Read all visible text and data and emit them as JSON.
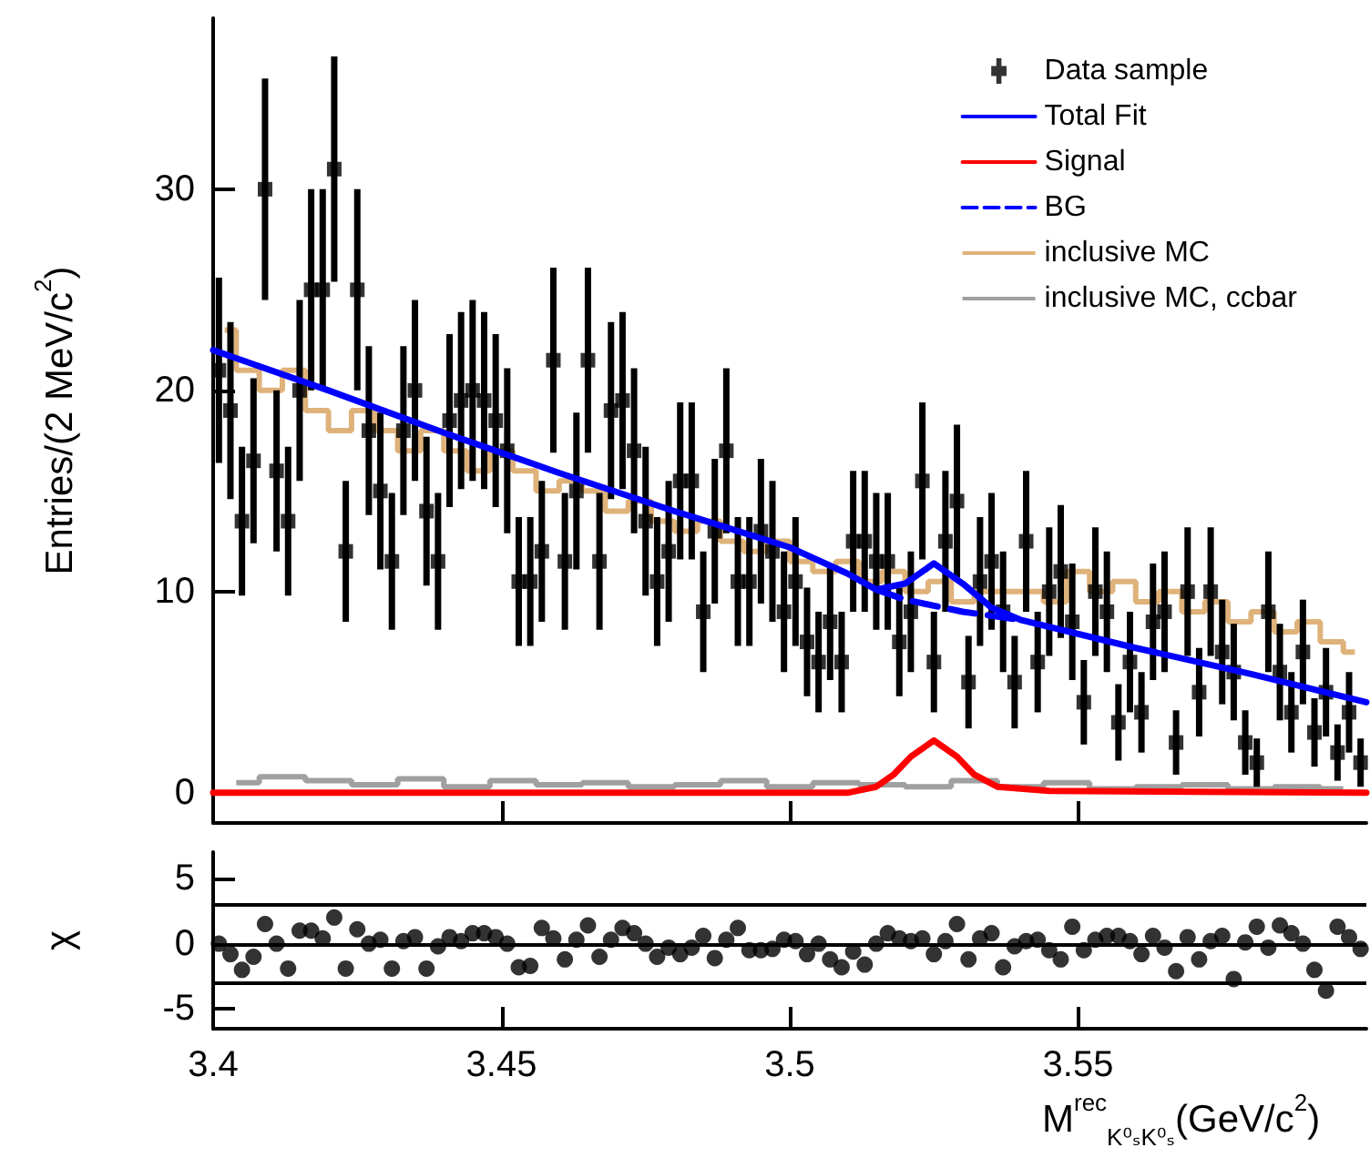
{
  "chart_data": [
    {
      "type": "scatter",
      "ylabel": "Entries/(2 MeV/c$^{2}$)",
      "xlim": [
        3.4,
        3.6
      ],
      "xticks": [
        3.4,
        3.45,
        3.5,
        3.55
      ],
      "ylim": [
        -1.5,
        38.5
      ],
      "yticks": [
        0,
        10,
        20,
        30
      ],
      "tick_labels": "y",
      "legend": "top right",
      "x": [
        3.401,
        3.403,
        3.405,
        3.407,
        3.409,
        3.411,
        3.413,
        3.415,
        3.417,
        3.419,
        3.421,
        3.423,
        3.425,
        3.427,
        3.429,
        3.431,
        3.433,
        3.435,
        3.437,
        3.439,
        3.441,
        3.443,
        3.445,
        3.447,
        3.449,
        3.451,
        3.453,
        3.455,
        3.457,
        3.459,
        3.461,
        3.463,
        3.465,
        3.467,
        3.469,
        3.471,
        3.473,
        3.475,
        3.477,
        3.479,
        3.481,
        3.483,
        3.485,
        3.487,
        3.489,
        3.491,
        3.493,
        3.495,
        3.497,
        3.499,
        3.501,
        3.503,
        3.505,
        3.507,
        3.509,
        3.511,
        3.513,
        3.515,
        3.517,
        3.519,
        3.521,
        3.523,
        3.525,
        3.527,
        3.529,
        3.531,
        3.533,
        3.535,
        3.537,
        3.539,
        3.541,
        3.543,
        3.545,
        3.547,
        3.549,
        3.551,
        3.553,
        3.555,
        3.557,
        3.559,
        3.561,
        3.563,
        3.565,
        3.567,
        3.569,
        3.571,
        3.573,
        3.575,
        3.577,
        3.579,
        3.581,
        3.583,
        3.585,
        3.587,
        3.589,
        3.591,
        3.593,
        3.595,
        3.597,
        3.599
      ],
      "series": [
        {
          "name": "Data sample",
          "type": "scatter",
          "marker": "square",
          "color": "#000000",
          "values": [
            21,
            19,
            13.5,
            16.5,
            30,
            16,
            13.5,
            20,
            25,
            25,
            31,
            12,
            25,
            18,
            15,
            11.5,
            18,
            20,
            14,
            11.5,
            18.5,
            19.5,
            20,
            19.5,
            18.5,
            17,
            10.5,
            10.5,
            12,
            21.5,
            11.5,
            15,
            21.5,
            11.5,
            19,
            19.5,
            17,
            13.5,
            10.5,
            12,
            15.5,
            15.5,
            9,
            13,
            17,
            10.5,
            10.5,
            13,
            12,
            9,
            10.5,
            7.5,
            6.5,
            8.5,
            6.5,
            12.5,
            12.5,
            11.5,
            11.5,
            7.5,
            9,
            15.5,
            6.5,
            12.5,
            14.5,
            5.5,
            10.5,
            11.5,
            9,
            5.5,
            12.5,
            6.5,
            10,
            11,
            8.5,
            4.5,
            10,
            9,
            3.5,
            6.5,
            4,
            8.5,
            9,
            2.5,
            10,
            5,
            10,
            7,
            6,
            2.5,
            1.5,
            9,
            6,
            4,
            7,
            3,
            5,
            2,
            4,
            1.5
          ],
          "errors": [
            4.6,
            4.4,
            3.7,
            4.1,
            5.5,
            4,
            3.7,
            4.5,
            5,
            5,
            5.6,
            3.5,
            5,
            4.2,
            3.9,
            3.4,
            4.2,
            4.5,
            3.7,
            3.4,
            4.3,
            4.4,
            4.5,
            4.4,
            4.3,
            4.1,
            3.2,
            3.2,
            3.5,
            4.6,
            3.4,
            3.9,
            4.6,
            3.4,
            4.4,
            4.4,
            4.1,
            3.7,
            3.2,
            3.5,
            3.9,
            3.9,
            3,
            3.6,
            4.1,
            3.2,
            3.2,
            3.6,
            3.5,
            3,
            3.2,
            2.7,
            2.5,
            2.9,
            2.5,
            3.5,
            3.5,
            3.4,
            3.4,
            2.7,
            3,
            3.9,
            2.5,
            3.5,
            3.8,
            2.3,
            3.2,
            3.4,
            3,
            2.3,
            3.5,
            2.5,
            3.2,
            3.3,
            2.9,
            2.1,
            3.2,
            3,
            1.9,
            2.5,
            2,
            2.9,
            3,
            1.6,
            3.2,
            2.2,
            3.2,
            2.6,
            2.4,
            1.6,
            1.2,
            3,
            2.4,
            2,
            2.6,
            1.7,
            2.2,
            1.4,
            2,
            1.2
          ]
        },
        {
          "name": "Total Fit",
          "type": "line",
          "color": "#0000ff",
          "x": [
            3.4,
            3.42,
            3.44,
            3.46,
            3.48,
            3.5,
            3.51,
            3.515,
            3.52,
            3.525,
            3.53,
            3.535,
            3.54,
            3.56,
            3.58,
            3.6
          ],
          "values": [
            22,
            20,
            17.9,
            15.9,
            14,
            12.2,
            10.9,
            10.1,
            10.4,
            11.4,
            10.4,
            9.2,
            8.6,
            7.2,
            5.9,
            4.5
          ]
        },
        {
          "name": "Signal",
          "type": "line",
          "color": "#ff0000",
          "x": [
            3.4,
            3.51,
            3.515,
            3.518,
            3.521,
            3.525,
            3.529,
            3.532,
            3.536,
            3.545,
            3.6
          ],
          "values": [
            0,
            0,
            0.3,
            0.9,
            1.8,
            2.6,
            1.8,
            0.9,
            0.3,
            0.1,
            0
          ]
        },
        {
          "name": "BG",
          "type": "line",
          "line_style": "dashed",
          "color": "#0000ff",
          "x": [
            3.515,
            3.52,
            3.525,
            3.53,
            3.535,
            3.54
          ],
          "values": [
            10.1,
            9.6,
            9.3,
            9,
            8.8,
            8.6
          ]
        },
        {
          "name": "inclusive MC",
          "type": "step",
          "color": "#deb27a",
          "x": [
            3.402,
            3.406,
            3.41,
            3.414,
            3.418,
            3.422,
            3.426,
            3.43,
            3.434,
            3.438,
            3.442,
            3.446,
            3.45,
            3.454,
            3.458,
            3.462,
            3.466,
            3.47,
            3.474,
            3.478,
            3.482,
            3.486,
            3.49,
            3.494,
            3.498,
            3.502,
            3.506,
            3.51,
            3.514,
            3.518,
            3.522,
            3.526,
            3.53,
            3.534,
            3.538,
            3.542,
            3.546,
            3.55,
            3.554,
            3.558,
            3.562,
            3.566,
            3.57,
            3.574,
            3.578,
            3.582,
            3.586,
            3.59,
            3.594,
            3.598
          ],
          "values": [
            23,
            21,
            20,
            21,
            19,
            18,
            19,
            18,
            17,
            18,
            17,
            16,
            17,
            16,
            15,
            15.5,
            15,
            14,
            14.5,
            13.5,
            13,
            13.5,
            12.5,
            12,
            12.5,
            11.5,
            11,
            11.5,
            10.5,
            11,
            10,
            10.5,
            9.5,
            10,
            10,
            10,
            9.5,
            11,
            10,
            10.5,
            9.5,
            10,
            9,
            9.5,
            8.5,
            9,
            8,
            8.5,
            7.5,
            7
          ]
        },
        {
          "name": "inclusive MC, ccbar",
          "type": "step",
          "color": "#a0a0a0",
          "x": [
            3.404,
            3.412,
            3.42,
            3.428,
            3.436,
            3.444,
            3.452,
            3.46,
            3.468,
            3.476,
            3.484,
            3.492,
            3.5,
            3.508,
            3.516,
            3.524,
            3.532,
            3.54,
            3.548,
            3.556,
            3.564,
            3.572,
            3.58,
            3.588,
            3.596
          ],
          "values": [
            0.5,
            0.8,
            0.6,
            0.4,
            0.7,
            0.3,
            0.6,
            0.4,
            0.5,
            0.3,
            0.4,
            0.6,
            0.3,
            0.5,
            0.4,
            0.3,
            0.6,
            0.3,
            0.5,
            0.2,
            0.3,
            0.4,
            0.2,
            0.3,
            0.2
          ]
        }
      ]
    },
    {
      "type": "scatter",
      "xlabel": "M$^{rec}$$_{K⁰ₛK⁰ₛ}$(GeV/c$^{2}$)",
      "ylabel": "χ",
      "xlim": [
        3.4,
        3.6
      ],
      "xticks": [
        3.4,
        3.45,
        3.5,
        3.55
      ],
      "ylim": [
        -6.5,
        7
      ],
      "yticks": [
        -5,
        0,
        5
      ],
      "marker": "circle",
      "ref_lines": [
        {
          "axis": "y",
          "value": 3,
          "color": "#000000"
        },
        {
          "axis": "y",
          "value": 0,
          "color": "#000000"
        },
        {
          "axis": "y",
          "value": -3,
          "color": "#000000"
        }
      ],
      "x": [
        3.401,
        3.403,
        3.405,
        3.407,
        3.409,
        3.411,
        3.413,
        3.415,
        3.417,
        3.419,
        3.421,
        3.423,
        3.425,
        3.427,
        3.429,
        3.431,
        3.433,
        3.435,
        3.437,
        3.439,
        3.441,
        3.443,
        3.445,
        3.447,
        3.449,
        3.451,
        3.453,
        3.455,
        3.457,
        3.459,
        3.461,
        3.463,
        3.465,
        3.467,
        3.469,
        3.471,
        3.473,
        3.475,
        3.477,
        3.479,
        3.481,
        3.483,
        3.485,
        3.487,
        3.489,
        3.491,
        3.493,
        3.495,
        3.497,
        3.499,
        3.501,
        3.503,
        3.505,
        3.507,
        3.509,
        3.511,
        3.513,
        3.515,
        3.517,
        3.519,
        3.521,
        3.523,
        3.525,
        3.527,
        3.529,
        3.531,
        3.533,
        3.535,
        3.537,
        3.539,
        3.541,
        3.543,
        3.545,
        3.547,
        3.549,
        3.551,
        3.553,
        3.555,
        3.557,
        3.559,
        3.561,
        3.563,
        3.565,
        3.567,
        3.569,
        3.571,
        3.573,
        3.575,
        3.577,
        3.579,
        3.581,
        3.583,
        3.585,
        3.587,
        3.589,
        3.591,
        3.593,
        3.595,
        3.597,
        3.599
      ],
      "series": [
        {
          "color": "#000000",
          "values": [
            0,
            -0.8,
            -2,
            -1,
            1.5,
            0,
            -1.9,
            1,
            1,
            0.4,
            2,
            -1.9,
            1.1,
            0,
            0.3,
            -1.9,
            0.2,
            0.5,
            -1.9,
            -0.2,
            0.5,
            0.2,
            0.8,
            0.8,
            0.5,
            0,
            -1.8,
            -1.7,
            1.2,
            0.4,
            -1.2,
            0.3,
            1.4,
            -1,
            0.3,
            1.2,
            0.8,
            0,
            -1,
            -0.3,
            -0.8,
            -0.3,
            0.6,
            -1.1,
            0.3,
            1.2,
            -0.5,
            -0.5,
            -0.4,
            0.3,
            0.2,
            -0.8,
            0,
            -1.2,
            -1.8,
            -0.6,
            -1.6,
            0,
            0.8,
            0.4,
            0.2,
            0.4,
            -0.8,
            0.2,
            1.5,
            -1.2,
            0.4,
            0.8,
            -1.8,
            -0.2,
            0.2,
            0.3,
            -0.5,
            -1.2,
            1.3,
            -0.5,
            0.3,
            0.6,
            0.6,
            0.2,
            -0.8,
            0.6,
            -0.3,
            -2.1,
            0.5,
            -1.2,
            0.2,
            0.6,
            -2.7,
            0.1,
            1.3,
            -0.3,
            1.4,
            0.8,
            0,
            -2,
            -3.6,
            1.3,
            0.5,
            -0.4
          ]
        }
      ]
    }
  ]
}
